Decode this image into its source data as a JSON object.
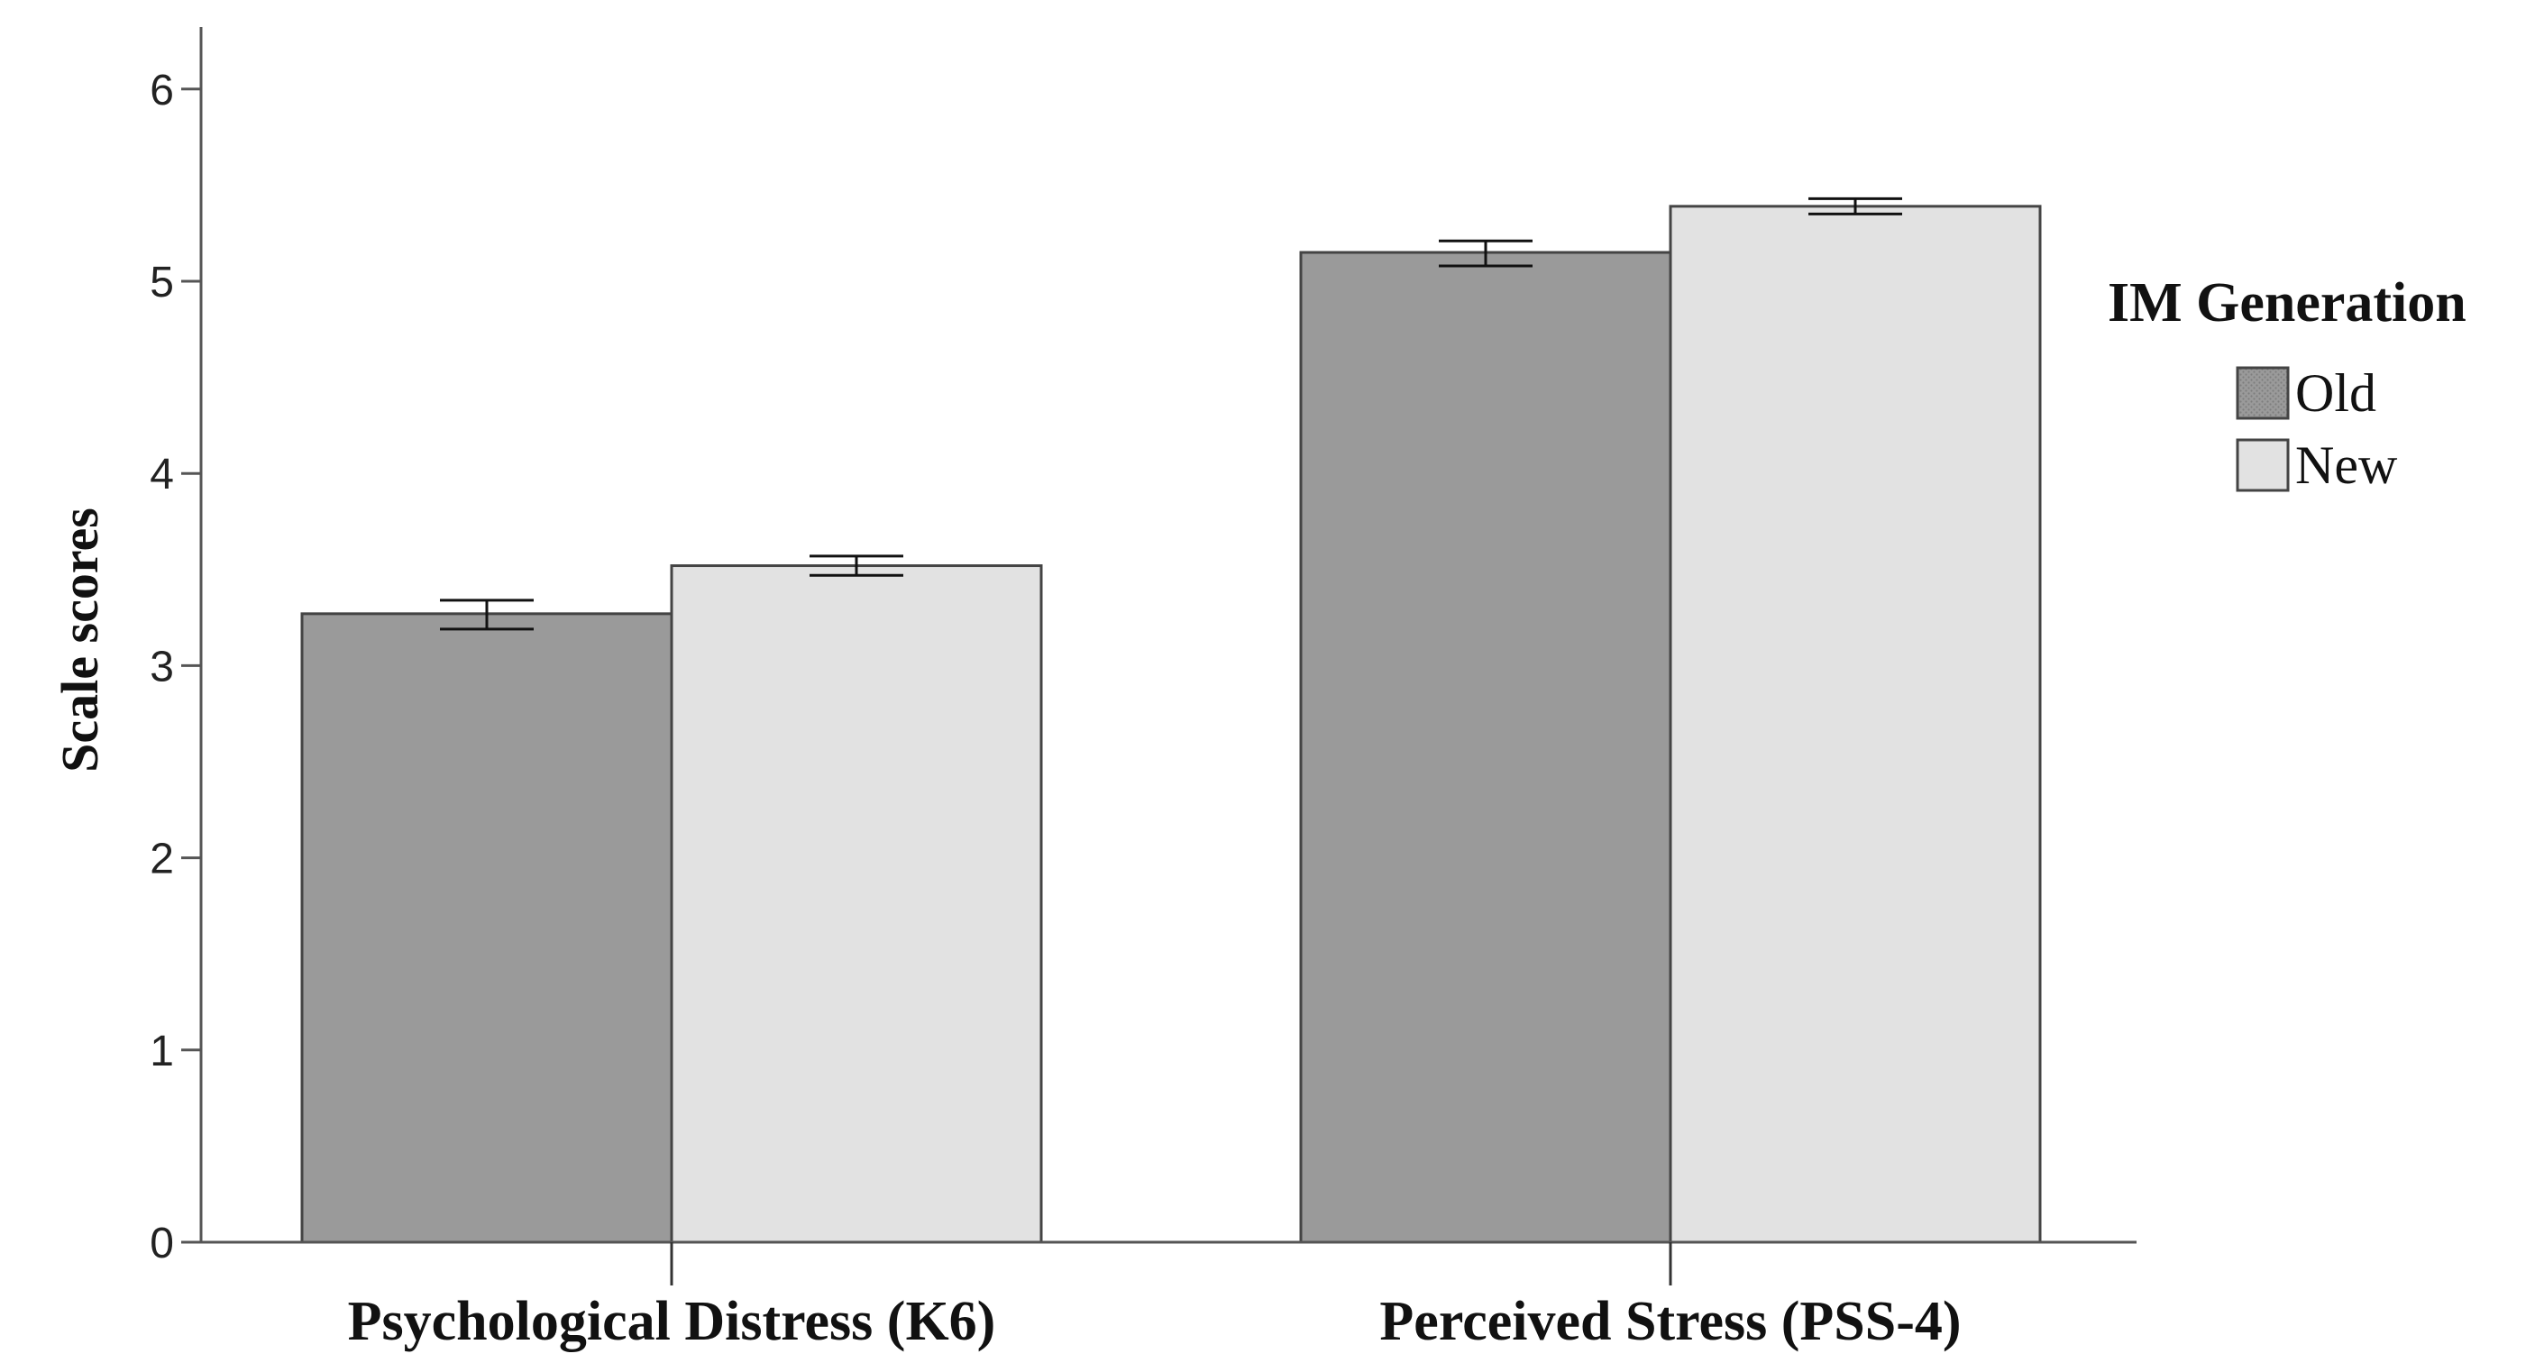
{
  "chart_data": {
    "type": "bar",
    "title": "",
    "xlabel": "",
    "ylabel": "Scale scores",
    "ylim": [
      0,
      6.3
    ],
    "yticks": [
      "0",
      "1",
      "2",
      "3",
      "4",
      "5",
      "6"
    ],
    "categories": [
      "Psychological Distress (K6)",
      "Perceived Stress (PSS-4)"
    ],
    "series": [
      {
        "name": "Old",
        "color": "#9a9a9a",
        "values": [
          3.27,
          5.15
        ],
        "error_low": [
          3.19,
          5.08
        ],
        "error_high": [
          3.34,
          5.21
        ]
      },
      {
        "name": "New",
        "color": "#e2e2e2",
        "values": [
          3.52,
          5.39
        ],
        "error_low": [
          3.47,
          5.35
        ],
        "error_high": [
          3.57,
          5.43
        ]
      }
    ],
    "grid": false,
    "legend": {
      "title": "IM Generation",
      "position": "right",
      "items": [
        "Old",
        "New"
      ]
    }
  }
}
